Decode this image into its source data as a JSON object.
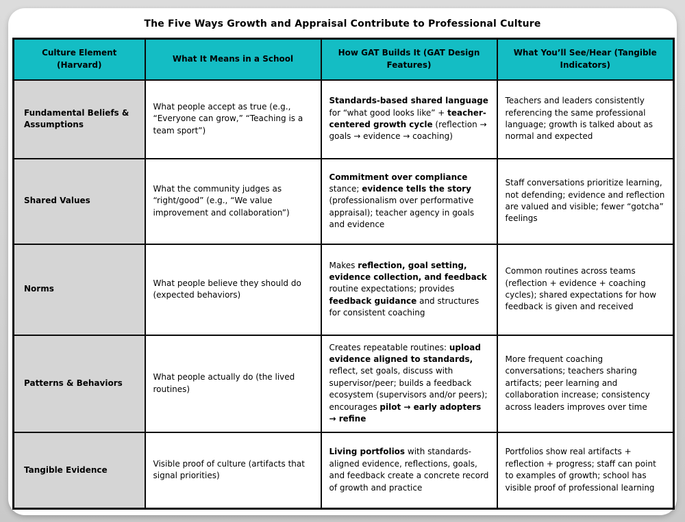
{
  "page": {
    "title": "The Five Ways Growth and Appraisal Contribute to Professional Culture"
  },
  "colors": {
    "header_teal": "#14bdc4",
    "label_gray": "#d5d5d5",
    "border": "#0a0a0a",
    "page_bg": "#d3d3d3",
    "card_bg": "#ffffff"
  },
  "table": {
    "headers": [
      "Culture Element (Harvard)",
      "What It Means in a School",
      "How GAT Builds It (GAT Design Features)",
      "What You’ll See/Hear (Tangible Indicators)"
    ],
    "rows": [
      {
        "element": "Fundamental Beliefs & Assumptions",
        "means": "What people accept as true (e.g., “Everyone can grow,” “Teaching is a team sport”)",
        "how": [
          {
            "t": "Standards-based shared language",
            "b": true
          },
          {
            "t": " for “what good looks like” + ",
            "b": false
          },
          {
            "t": "teacher-centered growth cycle",
            "b": true
          },
          {
            "t": " (reflection → goals → evidence → coaching)",
            "b": false
          }
        ],
        "see": "Teachers and leaders consistently referencing the same professional language; growth is talked about as normal and expected"
      },
      {
        "element": "Shared Values",
        "means": "What the community judges as “right/good” (e.g., “We value improvement and collaboration”)",
        "how": [
          {
            "t": "Commitment over compliance",
            "b": true
          },
          {
            "t": " stance; ",
            "b": false
          },
          {
            "t": "evidence tells the story",
            "b": true
          },
          {
            "t": " (professionalism over performative appraisal); teacher agency in goals and evidence",
            "b": false
          }
        ],
        "see": "Staff conversations prioritize learning, not defending; evidence and reflection are valued and visible; fewer “gotcha” feelings"
      },
      {
        "element": "Norms",
        "means": "What people believe they should do (expected behaviors)",
        "how": [
          {
            "t": "Makes ",
            "b": false
          },
          {
            "t": "reflection, goal setting, evidence collection, and feedback",
            "b": true
          },
          {
            "t": " routine expectations; provides ",
            "b": false
          },
          {
            "t": "feedback guidance",
            "b": true
          },
          {
            "t": " and structures for consistent coaching",
            "b": false
          }
        ],
        "see": "Common routines across teams (reflection + evidence + coaching cycles); shared expectations for how feedback is given and received"
      },
      {
        "element": "Patterns & Behaviors",
        "means": "What people actually do (the lived routines)",
        "how": [
          {
            "t": "Creates repeatable routines: ",
            "b": false
          },
          {
            "t": "upload evidence aligned to standards,",
            "b": true
          },
          {
            "t": " reflect, set goals, discuss with supervisor/peer; builds a feedback ecosystem (supervisors and/or peers); encourages ",
            "b": false
          },
          {
            "t": "pilot → early adopters → refine",
            "b": true
          }
        ],
        "see": "More frequent coaching conversations; teachers sharing artifacts; peer learning and collaboration increase; consistency across leaders improves over time"
      },
      {
        "element": "Tangible Evidence",
        "means": "Visible proof of culture (artifacts that signal priorities)",
        "how": [
          {
            "t": "Living portfolios",
            "b": true
          },
          {
            "t": " with standards-aligned evidence, reflections, goals, and feedback create a concrete record of growth and practice",
            "b": false
          }
        ],
        "see": "Portfolios show real artifacts + reflection + progress; staff can point to examples of growth; school has visible proof of professional learning"
      }
    ]
  }
}
